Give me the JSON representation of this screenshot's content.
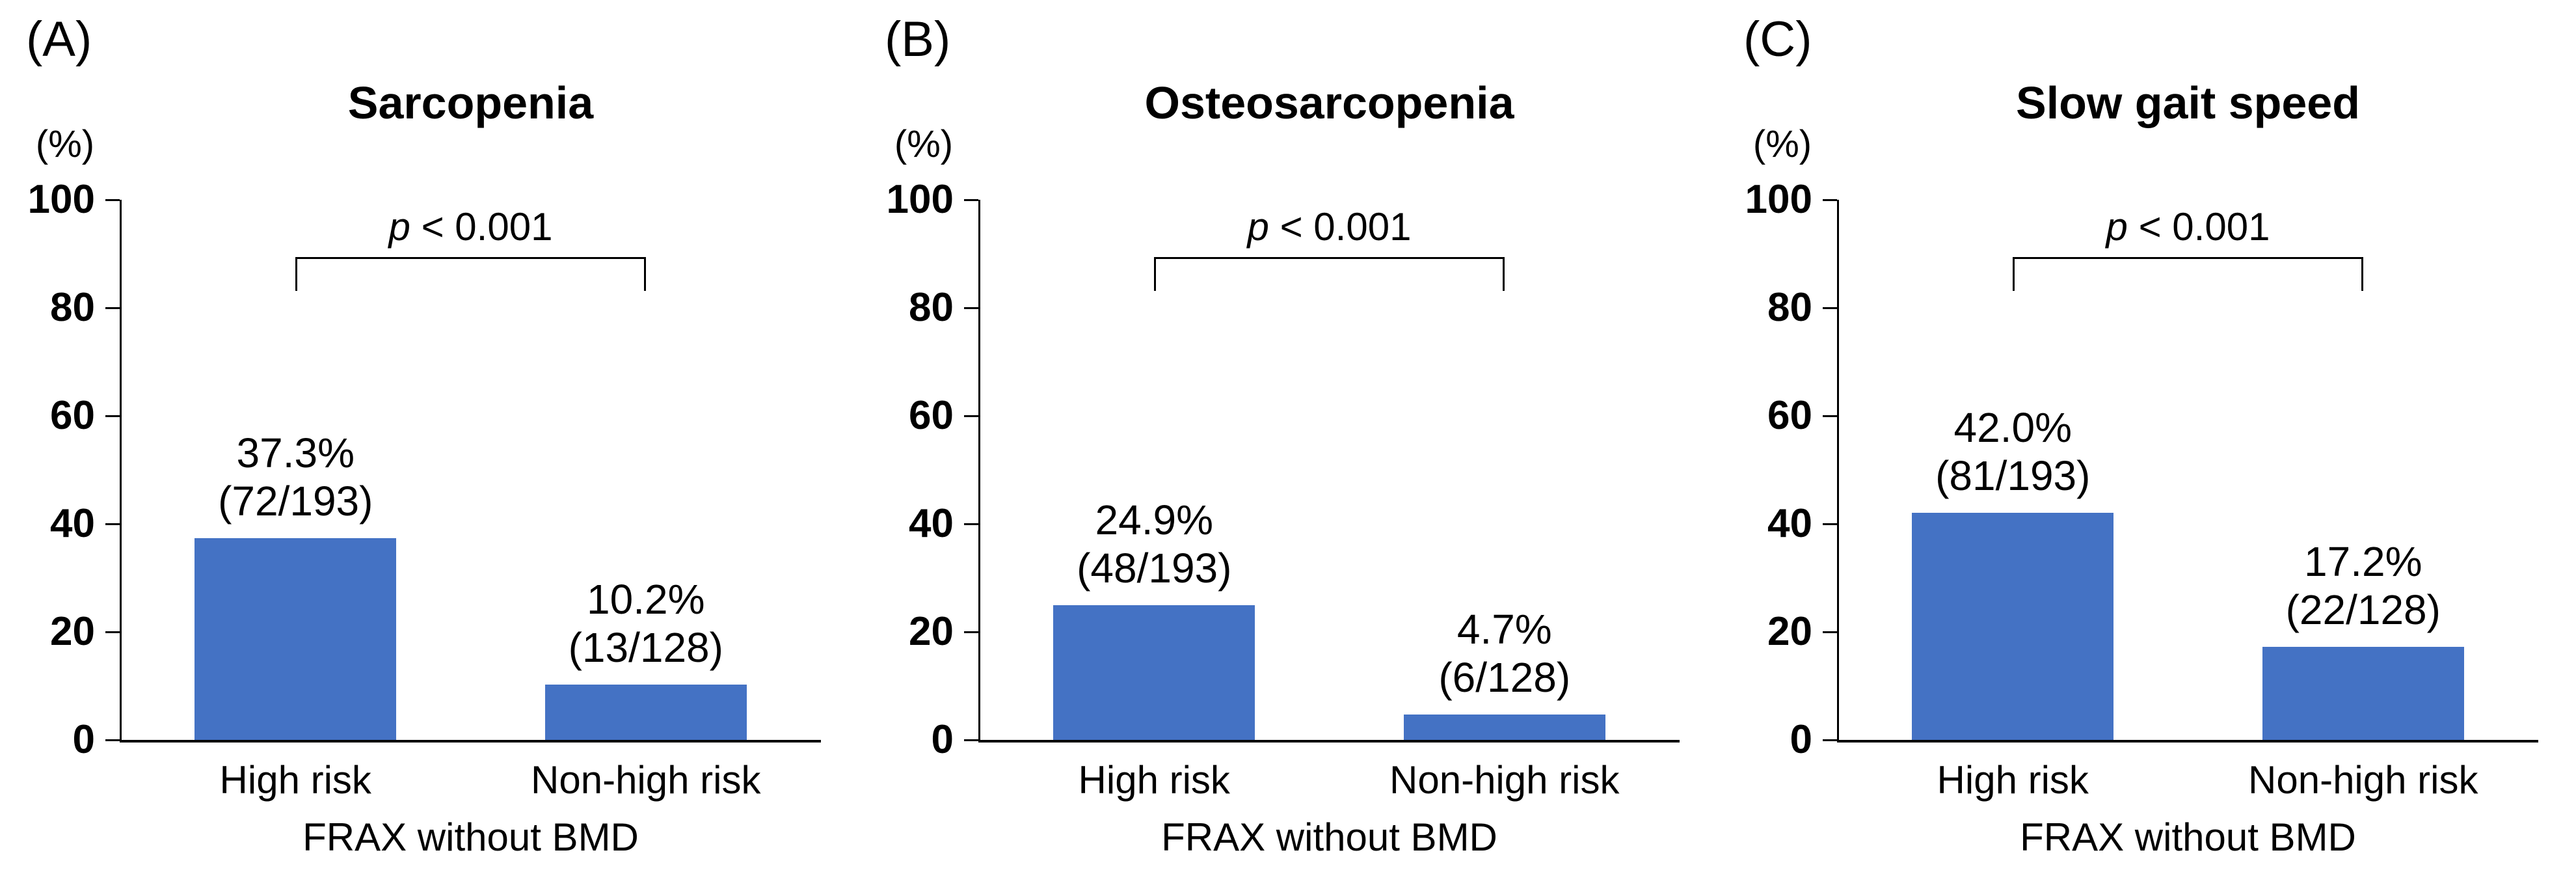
{
  "figure": {
    "background": "#ffffff",
    "bar_color": "#4472C4",
    "axis_color": "#000000",
    "text_color": "#000000"
  },
  "chart_data": [
    {
      "type": "bar",
      "panel_label": "(A)",
      "title": "Sarcopenia",
      "y_axis_unit": "(%)",
      "ylim": [
        0,
        100
      ],
      "yticks": [
        0,
        20,
        40,
        60,
        80,
        100
      ],
      "grid": false,
      "legend": "none",
      "categories": [
        "High risk",
        "Non-high risk"
      ],
      "values": [
        37.3,
        10.2
      ],
      "bar_label_lines": [
        [
          "37.3%",
          "(72/193)"
        ],
        [
          "10.2%",
          "(13/128)"
        ]
      ],
      "significance": {
        "symbol": "p",
        "comparison": "< 0.001"
      },
      "xlabel": "FRAX without BMD"
    },
    {
      "type": "bar",
      "panel_label": "(B)",
      "title": "Osteosarcopenia",
      "y_axis_unit": "(%)",
      "ylim": [
        0,
        100
      ],
      "yticks": [
        0,
        20,
        40,
        60,
        80,
        100
      ],
      "grid": false,
      "legend": "none",
      "categories": [
        "High risk",
        "Non-high risk"
      ],
      "values": [
        24.9,
        4.7
      ],
      "bar_label_lines": [
        [
          "24.9%",
          "(48/193)"
        ],
        [
          "4.7%",
          "(6/128)"
        ]
      ],
      "significance": {
        "symbol": "p",
        "comparison": "< 0.001"
      },
      "xlabel": "FRAX without BMD"
    },
    {
      "type": "bar",
      "panel_label": "(C)",
      "title": "Slow gait speed",
      "y_axis_unit": "(%)",
      "ylim": [
        0,
        100
      ],
      "yticks": [
        0,
        20,
        40,
        60,
        80,
        100
      ],
      "grid": false,
      "legend": "none",
      "categories": [
        "High risk",
        "Non-high risk"
      ],
      "values": [
        42.0,
        17.2
      ],
      "bar_label_lines": [
        [
          "42.0%",
          "(81/193)"
        ],
        [
          "17.2%",
          "(22/128)"
        ]
      ],
      "significance": {
        "symbol": "p",
        "comparison": "< 0.001"
      },
      "xlabel": "FRAX without BMD"
    }
  ]
}
